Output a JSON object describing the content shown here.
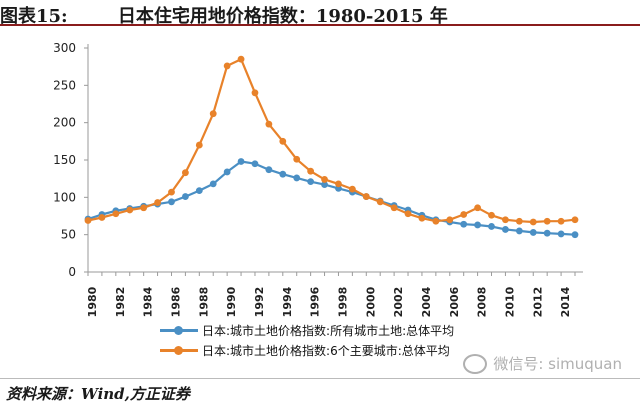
{
  "header": {
    "title": "图表15:        日本住宅用地价格指数：1980-2015 年"
  },
  "footer": {
    "source": "资料来源：Wind,方正证券"
  },
  "watermark": {
    "text": "微信号: simuquan"
  },
  "colors": {
    "series1": "#4a8fc4",
    "series2": "#e8822a",
    "axis": "#9a9a9a"
  },
  "chart_data": {
    "type": "line",
    "title": "",
    "xlabel": "",
    "ylabel": "",
    "ylim": [
      0,
      300
    ],
    "yticks": [
      0,
      50,
      100,
      150,
      200,
      250,
      300
    ],
    "xticks": [
      "1980",
      "1982",
      "1984",
      "1986",
      "1988",
      "1990",
      "1992",
      "1994",
      "1996",
      "1998",
      "2000",
      "2002",
      "2004",
      "2006",
      "2008",
      "2010",
      "2012",
      "2014"
    ],
    "x": [
      1980,
      1981,
      1982,
      1983,
      1984,
      1985,
      1986,
      1987,
      1988,
      1989,
      1990,
      1991,
      1992,
      1993,
      1994,
      1995,
      1996,
      1997,
      1998,
      1999,
      2000,
      2001,
      2002,
      2003,
      2004,
      2005,
      2006,
      2007,
      2008,
      2009,
      2010,
      2011,
      2012,
      2013,
      2014,
      2015
    ],
    "legend_position": "bottom",
    "series": [
      {
        "name": "日本:城市土地价格指数:所有城市土地:总体平均",
        "color": "#4a8fc4",
        "values": [
          71,
          77,
          82,
          85,
          88,
          91,
          94,
          101,
          109,
          118,
          134,
          148,
          145,
          137,
          131,
          126,
          121,
          117,
          112,
          107,
          101,
          95,
          89,
          83,
          76,
          70,
          67,
          64,
          63,
          61,
          57,
          55,
          53,
          52,
          51,
          50
        ]
      },
      {
        "name": "日本:城市土地价格指数:6个主要城市:总体平均",
        "color": "#e8822a",
        "values": [
          69,
          73,
          78,
          83,
          86,
          93,
          107,
          133,
          170,
          212,
          276,
          285,
          240,
          198,
          175,
          151,
          135,
          124,
          118,
          111,
          101,
          94,
          86,
          78,
          72,
          68,
          70,
          77,
          86,
          76,
          70,
          68,
          67,
          68,
          68,
          70
        ]
      }
    ]
  }
}
